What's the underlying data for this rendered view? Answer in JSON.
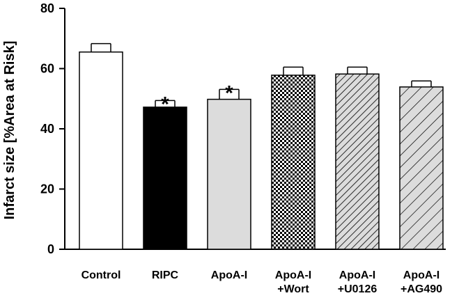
{
  "chart_data": {
    "type": "bar",
    "title": "",
    "xlabel": "",
    "ylabel": "Infarct size [%Area at Risk]",
    "ylim": [
      0,
      80
    ],
    "yticks": [
      "0",
      "20",
      "40",
      "60",
      "80"
    ],
    "grid": false,
    "categories": [
      [
        "Control"
      ],
      [
        "RIPC"
      ],
      [
        "ApoA-I"
      ],
      [
        "ApoA-I",
        "+Wort"
      ],
      [
        "ApoA-I",
        "+U0126"
      ],
      [
        "ApoA-I",
        "+AG490"
      ]
    ],
    "values": [
      65.5,
      47.2,
      49.8,
      57.8,
      58.2,
      53.9
    ],
    "errors": [
      2.8,
      2.2,
      3.3,
      2.7,
      2.3,
      2.0
    ],
    "significance": [
      "",
      "*",
      "*",
      "",
      "",
      ""
    ],
    "fills": [
      "white",
      "black",
      "light-gray",
      "checkerboard",
      "diagonal-hatch-dense",
      "diagonal-hatch-sparse"
    ],
    "colors": {
      "bar_stroke": "#000000",
      "light_gray": "#dcdcdc",
      "hatch_bg": "#dcdcdc"
    }
  }
}
